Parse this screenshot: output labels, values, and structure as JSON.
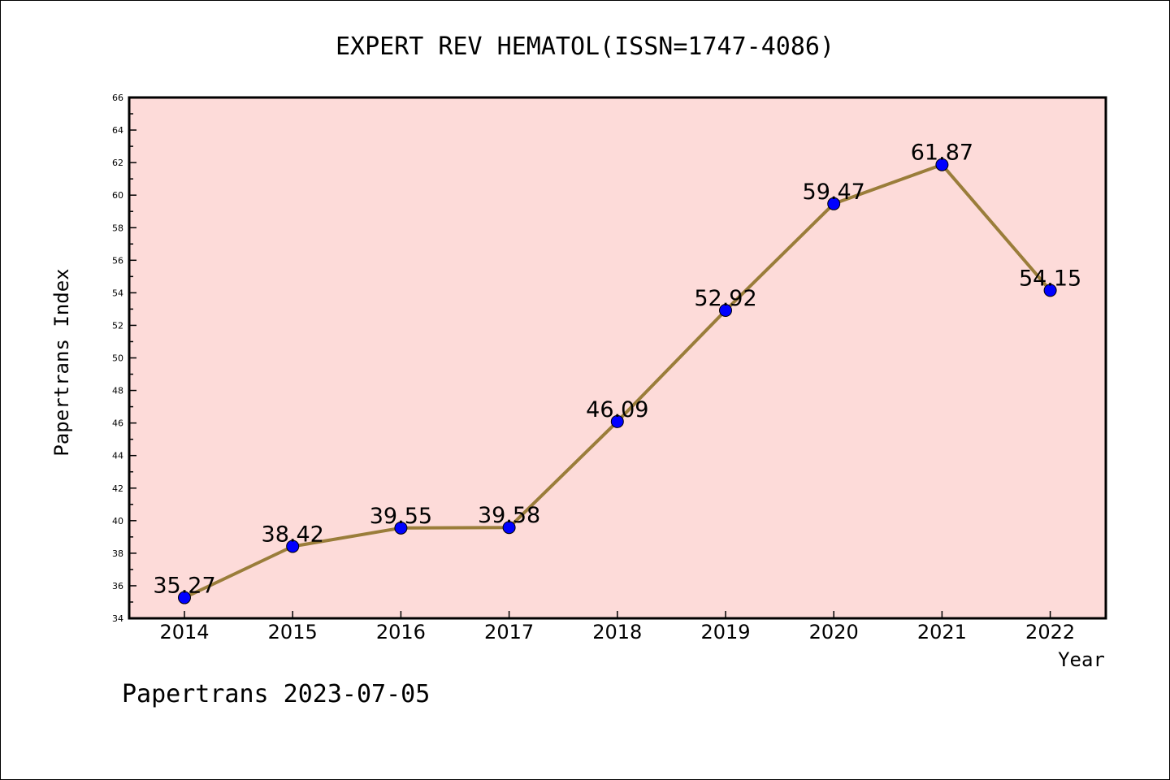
{
  "chart_data": {
    "type": "line",
    "title": "EXPERT REV HEMATOL(ISSN=1747-4086)",
    "xlabel": "Year",
    "ylabel": "Papertrans Index",
    "categories": [
      "2014",
      "2015",
      "2016",
      "2017",
      "2018",
      "2019",
      "2020",
      "2021",
      "2022"
    ],
    "series": [
      {
        "values": [
          35.27,
          38.42,
          39.55,
          39.58,
          46.09,
          52.92,
          59.47,
          61.87,
          54.15
        ]
      }
    ],
    "data_labels": [
      "35.27",
      "38.42",
      "39.55",
      "39.58",
      "46.09",
      "52.92",
      "59.47",
      "61.87",
      "54.15"
    ],
    "ylim": [
      34,
      66
    ],
    "y_ticks": [
      "34",
      "36",
      "38",
      "40",
      "42",
      "44",
      "46",
      "48",
      "50",
      "52",
      "54",
      "56",
      "58",
      "60",
      "62",
      "64",
      "66"
    ],
    "grid": false,
    "colors": {
      "plot_background": "#fddbd9",
      "line": "#9a7d3a",
      "marker": "#0000ff"
    }
  },
  "footer": {
    "text": "Papertrans 2023-07-05"
  }
}
